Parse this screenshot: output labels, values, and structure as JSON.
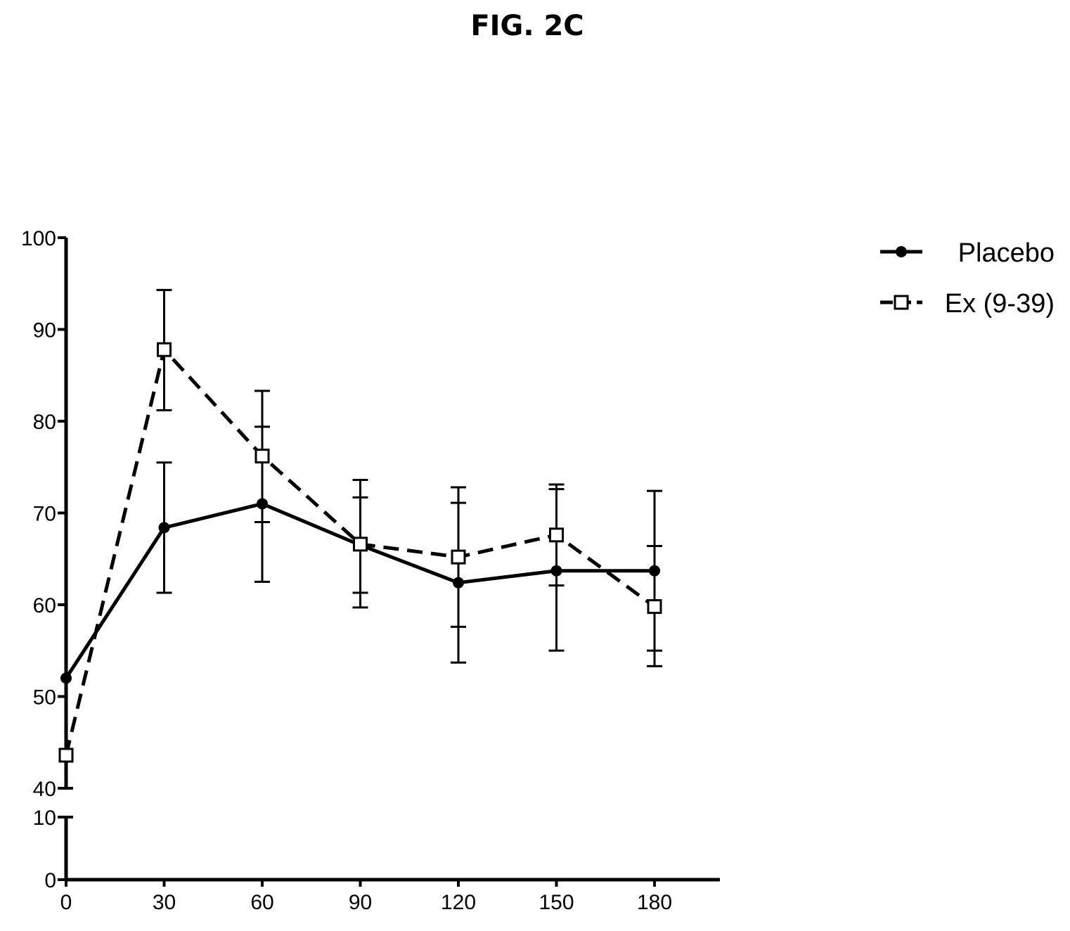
{
  "figure": {
    "title": "FIG. 2C"
  },
  "chart_data": {
    "type": "line",
    "x": [
      0,
      30,
      60,
      90,
      120,
      150,
      180
    ],
    "x_ticks": [
      0,
      30,
      60,
      90,
      120,
      150,
      180
    ],
    "xlim": [
      0,
      200
    ],
    "y_upper_ticks": [
      40,
      50,
      60,
      70,
      80,
      90,
      100
    ],
    "y_upper_range": [
      40,
      100
    ],
    "y_lower_ticks": [
      0,
      10
    ],
    "y_lower_range": [
      0,
      10
    ],
    "broken_y_axis": true,
    "grid": false,
    "legend_position": "top-right",
    "series": [
      {
        "name": "Placebo",
        "style": "solid",
        "marker": "filled-circle",
        "color": "#000000",
        "values": [
          52.0,
          68.4,
          71.0,
          66.5,
          62.4,
          63.7,
          63.7
        ],
        "error_upper": [
          null,
          75.5,
          79.4,
          71.7,
          71.1,
          72.6,
          72.4
        ],
        "error_lower": [
          null,
          61.3,
          62.5,
          61.3,
          53.7,
          55.0,
          55.0
        ]
      },
      {
        "name": "Ex (9-39)",
        "style": "dashed",
        "marker": "open-square",
        "color": "#000000",
        "values": [
          43.6,
          87.8,
          76.2,
          66.6,
          65.2,
          67.6,
          59.8
        ],
        "error_upper": [
          null,
          94.3,
          83.3,
          73.6,
          72.8,
          73.1,
          66.4
        ],
        "error_lower": [
          null,
          81.2,
          69.0,
          59.7,
          57.6,
          62.1,
          53.3
        ]
      }
    ]
  }
}
